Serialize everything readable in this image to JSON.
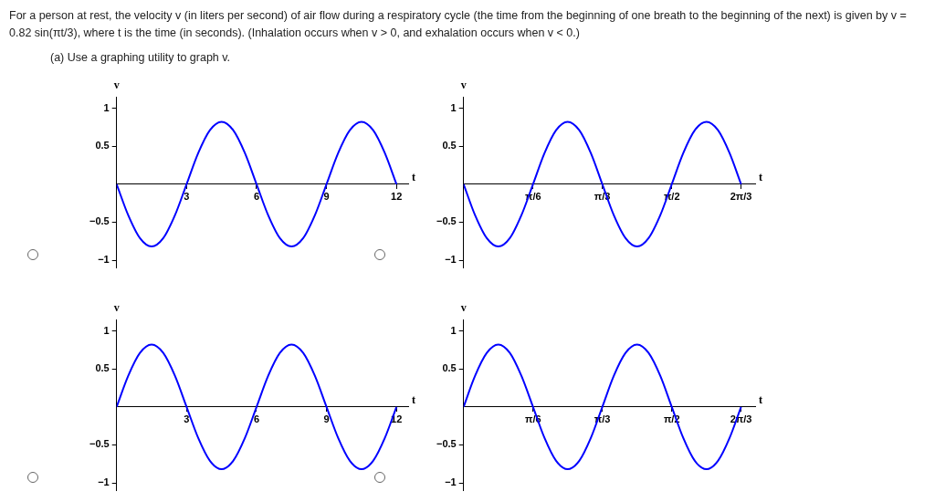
{
  "chart_data": [
    {
      "type": "other",
      "title": "For a person at rest, the velocity v (in liters per second) of air flow during a respiratory cycle (the time from the beginning of one breath to the beginning of the next) is given by  v = 0.82 sin(πt/3),  where t is the time (in seconds). (Inhalation occurs when v > 0, and exhalation occurs when v < 0.)",
      "subtitle": "(a) Use a graphing utility to graph v."
    },
    {
      "type": "line",
      "xlabel": "t",
      "ylabel": "v",
      "marker": "none",
      "grid": false,
      "xlim": [
        0,
        12.5
      ],
      "ylim": [
        -1.1,
        1.15
      ],
      "xticks": [
        3,
        6,
        9,
        12
      ],
      "yticks": [
        -1,
        -0.5,
        0.5,
        1
      ],
      "x": [
        0,
        0.5,
        1,
        1.5,
        2,
        2.5,
        3,
        3.5,
        4,
        4.5,
        5,
        5.5,
        6,
        6.5,
        7,
        7.5,
        8,
        8.5,
        9,
        9.5,
        10,
        10.5,
        11,
        11.5,
        12
      ],
      "series": [
        {
          "color": "#0000ff",
          "values": [
            0,
            -0.41,
            -0.71,
            -0.82,
            -0.71,
            -0.41,
            0,
            0.41,
            0.71,
            0.82,
            0.71,
            0.41,
            0,
            -0.41,
            -0.71,
            -0.82,
            -0.71,
            -0.41,
            0,
            0.41,
            0.71,
            0.82,
            0.71,
            0.41,
            0
          ]
        }
      ]
    },
    {
      "type": "line",
      "xlabel": "t",
      "ylabel": "v",
      "marker": "none",
      "grid": false,
      "xlim": [
        0,
        2.2
      ],
      "ylim": [
        -1.1,
        1.15
      ],
      "xticks": [
        {
          "value": 0.524,
          "label": "π/6"
        },
        {
          "value": 1.047,
          "label": "π/3"
        },
        {
          "value": 1.571,
          "label": "π/2"
        },
        {
          "value": 2.094,
          "label": "2π/3"
        }
      ],
      "yticks": [
        -1,
        -0.5,
        0.5,
        1
      ],
      "x": [
        0,
        0.087,
        0.175,
        0.262,
        0.349,
        0.436,
        0.524,
        0.611,
        0.698,
        0.785,
        0.873,
        0.96,
        1.047,
        1.134,
        1.222,
        1.309,
        1.396,
        1.484,
        1.571,
        1.658,
        1.745,
        1.833,
        1.92,
        2.007,
        2.094
      ],
      "series": [
        {
          "color": "#0000ff",
          "values": [
            0,
            -0.41,
            -0.71,
            -0.82,
            -0.71,
            -0.41,
            0,
            0.41,
            0.71,
            0.82,
            0.71,
            0.41,
            0,
            -0.41,
            -0.71,
            -0.82,
            -0.71,
            -0.41,
            0,
            0.41,
            0.71,
            0.82,
            0.71,
            0.41,
            0
          ]
        }
      ]
    },
    {
      "type": "line",
      "xlabel": "t",
      "ylabel": "v",
      "marker": "none",
      "grid": false,
      "xlim": [
        0,
        12.5
      ],
      "ylim": [
        -1.1,
        1.15
      ],
      "xticks": [
        3,
        6,
        9,
        12
      ],
      "yticks": [
        -1,
        -0.5,
        0.5,
        1
      ],
      "x": [
        0,
        0.5,
        1,
        1.5,
        2,
        2.5,
        3,
        3.5,
        4,
        4.5,
        5,
        5.5,
        6,
        6.5,
        7,
        7.5,
        8,
        8.5,
        9,
        9.5,
        10,
        10.5,
        11,
        11.5,
        12
      ],
      "series": [
        {
          "color": "#0000ff",
          "values": [
            0,
            0.41,
            0.71,
            0.82,
            0.71,
            0.41,
            0,
            -0.41,
            -0.71,
            -0.82,
            -0.71,
            -0.41,
            0,
            0.41,
            0.71,
            0.82,
            0.71,
            0.41,
            0,
            -0.41,
            -0.71,
            -0.82,
            -0.71,
            -0.41,
            0
          ]
        }
      ]
    },
    {
      "type": "line",
      "xlabel": "t",
      "ylabel": "v",
      "marker": "none",
      "grid": false,
      "xlim": [
        0,
        2.2
      ],
      "ylim": [
        -1.1,
        1.15
      ],
      "xticks": [
        {
          "value": 0.524,
          "label": "π/6"
        },
        {
          "value": 1.047,
          "label": "π/3"
        },
        {
          "value": 1.571,
          "label": "π/2"
        },
        {
          "value": 2.094,
          "label": "2π/3"
        }
      ],
      "yticks": [
        -1,
        -0.5,
        0.5,
        1
      ],
      "x": [
        0,
        0.087,
        0.175,
        0.262,
        0.349,
        0.436,
        0.524,
        0.611,
        0.698,
        0.785,
        0.873,
        0.96,
        1.047,
        1.134,
        1.222,
        1.309,
        1.396,
        1.484,
        1.571,
        1.658,
        1.745,
        1.833,
        1.92,
        2.007,
        2.094
      ],
      "series": [
        {
          "color": "#0000ff",
          "values": [
            0,
            0.41,
            0.71,
            0.82,
            0.71,
            0.41,
            0,
            -0.41,
            -0.71,
            -0.82,
            -0.71,
            -0.41,
            0,
            0.41,
            0.71,
            0.82,
            0.71,
            0.41,
            0,
            -0.41,
            -0.71,
            -0.82,
            -0.71,
            -0.41,
            0
          ]
        }
      ]
    }
  ]
}
